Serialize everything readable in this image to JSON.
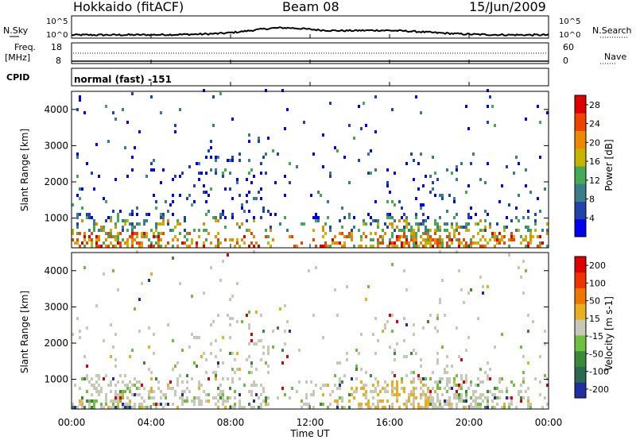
{
  "header": {
    "station": "Hokkaido (fitACF)",
    "beam": "Beam 08",
    "date": "15/Jun/2009"
  },
  "noise_panel": {
    "left_label": "N.Sky",
    "right_label": "N.Search",
    "tick_top": "10^5",
    "tick_bottom": "10^0",
    "right_tick_top": "10^5",
    "right_tick_bottom": "10^0"
  },
  "freq_panel": {
    "label_line1": "Freq.",
    "label_line2": "[MHz]",
    "ticks_left": [
      "18",
      "8"
    ],
    "ticks_right": [
      "60",
      "0"
    ],
    "right_label": "Nave"
  },
  "cpid_panel": {
    "label": "CPID",
    "text": "normal (fast) -151"
  },
  "time_axis": {
    "ticks": [
      "00:00",
      "04:00",
      "08:00",
      "12:00",
      "16:00",
      "20:00",
      "00:00"
    ],
    "label": "Time UT"
  },
  "colors": {
    "power": [
      "#0000ee",
      "#2244aa",
      "#3a7e8a",
      "#44aa55",
      "#c8b400",
      "#ee8800",
      "#ee4400",
      "#dd0000"
    ],
    "velocity": [
      "#2030a0",
      "#2a6a50",
      "#3a8a3a",
      "#70c040",
      "#c8c8b8",
      "#e8b020",
      "#ee7700",
      "#ee3300",
      "#dd0000"
    ]
  },
  "chart_data": [
    {
      "type": "heatmap",
      "name": "Power",
      "ylabel": "Slant Range [km]",
      "yticks": [
        "1000",
        "2000",
        "3000",
        "4000"
      ],
      "ylim": [
        180,
        4500
      ],
      "xlim": [
        "00:00",
        "24:00"
      ],
      "colorbar": {
        "label": "Power [dB]",
        "ticks": [
          "4",
          "8",
          "12",
          "16",
          "20",
          "24",
          "28"
        ],
        "range": [
          0,
          30
        ]
      }
    },
    {
      "type": "heatmap",
      "name": "Velocity",
      "ylabel": "Slant Range [km]",
      "yticks": [
        "1000",
        "2000",
        "3000",
        "4000"
      ],
      "ylim": [
        180,
        4500
      ],
      "xlim": [
        "00:00",
        "24:00"
      ],
      "colorbar": {
        "label": "Velocity [m s-1]",
        "ticks": [
          "200",
          "100",
          "50",
          "15",
          "-15",
          "-50",
          "-100",
          "-200"
        ]
      }
    }
  ]
}
